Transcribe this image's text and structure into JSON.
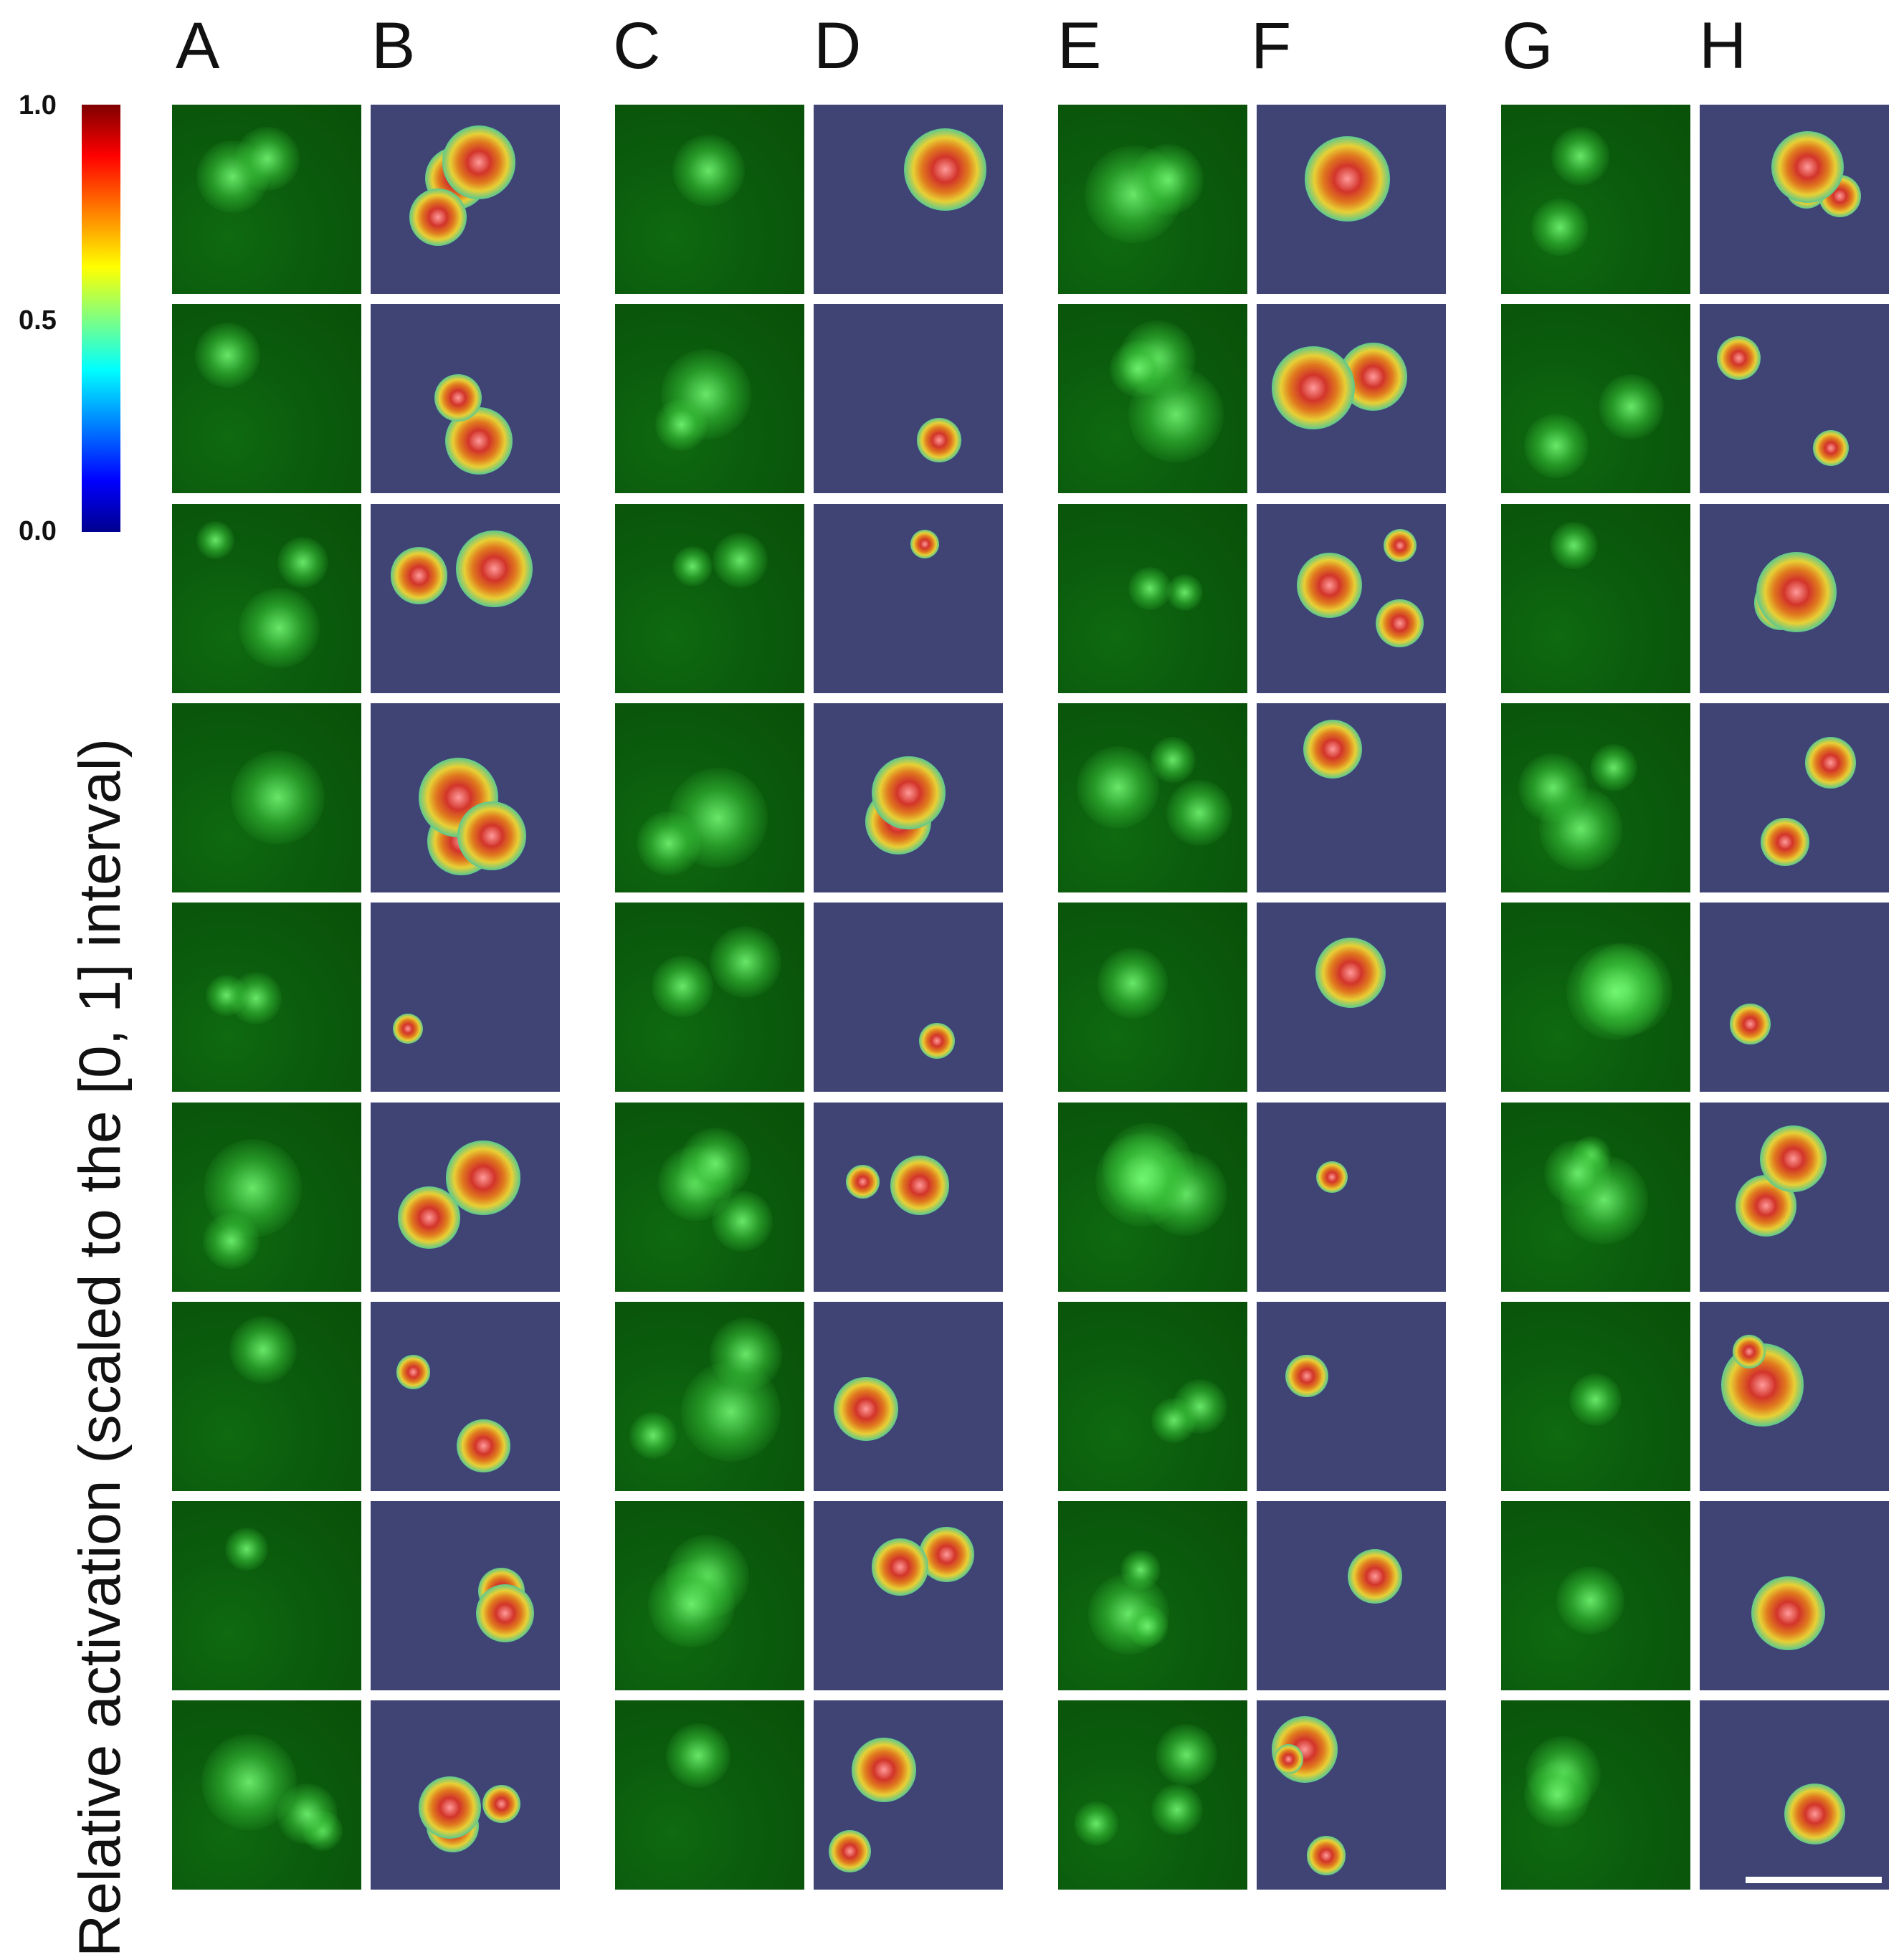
{
  "figure": {
    "column_labels": [
      "A",
      "B",
      "C",
      "D",
      "E",
      "F",
      "G",
      "H"
    ],
    "colorbar": {
      "ticks": [
        "1.0",
        "0.5",
        "0.0"
      ],
      "colors": [
        "#7f0000",
        "#ff0000",
        "#ff7f00",
        "#ffff00",
        "#80ff80",
        "#00ffff",
        "#0080ff",
        "#0000ff",
        "#00008f"
      ]
    },
    "axis_title": "Relative activation (scaled to the [0,  1] interval)",
    "rows": 9,
    "panel_types": [
      "green-fluorescence",
      "activation-heatmap",
      "green-fluorescence",
      "activation-heatmap",
      "green-fluorescence",
      "activation-heatmap",
      "green-fluorescence",
      "activation-heatmap"
    ],
    "colors": {
      "fluorescence_bg": "#0b5d0d",
      "heatmap_bg": "#3f4475"
    }
  }
}
